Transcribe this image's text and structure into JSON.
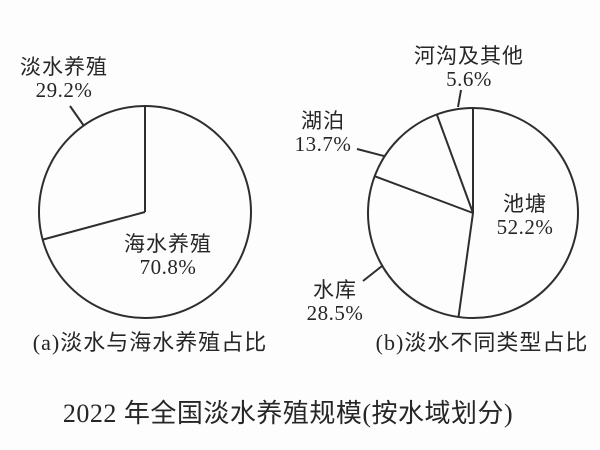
{
  "figure_title": "2022 年全国淡水养殖规模(按水域划分)",
  "colors": {
    "line": "#2e2e2e",
    "text": "#262626",
    "background": "#fdfdfd"
  },
  "chart_data": [
    {
      "type": "pie",
      "caption": "(a)淡水与海水养殖占比",
      "legend_position": "none",
      "slice_order": "clockwise-from-12-o-clock",
      "style": "outline-only, no fill",
      "slices": [
        {
          "label": "海水养殖",
          "value": 70.8,
          "percent_text": "70.8%",
          "label_position": "inside-lower-right"
        },
        {
          "label": "淡水养殖",
          "value": 29.2,
          "percent_text": "29.2%",
          "label_position": "outside-upper-left-with-leader"
        }
      ]
    },
    {
      "type": "pie",
      "caption": "(b)淡水不同类型占比",
      "legend_position": "none",
      "slice_order": "clockwise-from-12-o-clock",
      "style": "outline-only, no fill",
      "slices": [
        {
          "label": "池塘",
          "value": 52.2,
          "percent_text": "52.2%",
          "label_position": "inside-right"
        },
        {
          "label": "水库",
          "value": 28.5,
          "percent_text": "28.5%",
          "label_position": "outside-lower-left-with-leader"
        },
        {
          "label": "湖泊",
          "value": 13.7,
          "percent_text": "13.7%",
          "label_position": "outside-left-with-leader"
        },
        {
          "label": "河沟及其他",
          "value": 5.6,
          "percent_text": "5.6%",
          "label_position": "outside-top-with-leader"
        }
      ]
    }
  ]
}
